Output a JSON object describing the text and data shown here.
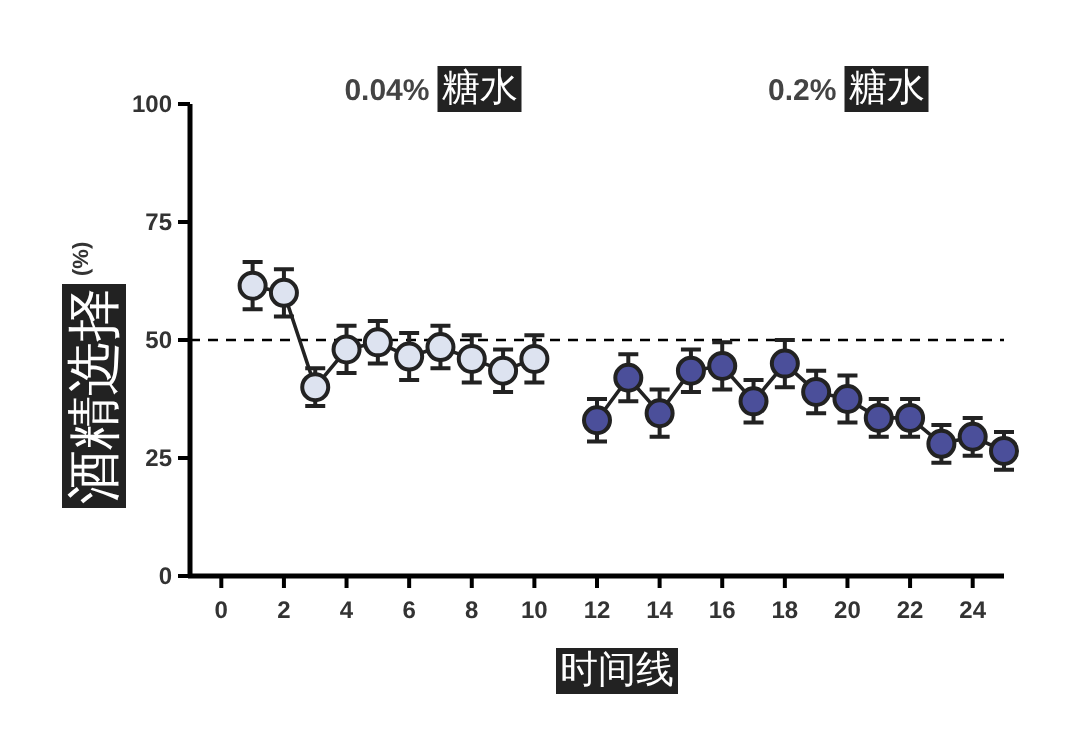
{
  "chart_data": {
    "type": "line",
    "xlabel": "时间线",
    "ylabel": "酒精选择 (%)",
    "annotations": [
      "0.04% 糖水",
      "0.2% 糖水"
    ],
    "xlim": [
      -1,
      25
    ],
    "xticks": [
      0,
      2,
      4,
      6,
      8,
      10,
      12,
      14,
      16,
      18,
      20,
      22,
      24
    ],
    "ylim": [
      0,
      100
    ],
    "yticks": [
      0,
      25,
      50,
      75,
      100
    ],
    "grid": false,
    "marker": "circle",
    "line_style": "solid",
    "ref_lines": [
      {
        "axis": "y",
        "value": 50,
        "line_style": "dashed",
        "color": "#000000"
      }
    ],
    "series": [
      {
        "color": "#dde3f0",
        "x": [
          1,
          2,
          3,
          4,
          5,
          6,
          7,
          8,
          9,
          10
        ],
        "values": [
          61.5,
          60,
          40,
          48,
          49.5,
          46.5,
          48.5,
          46,
          43.5,
          46
        ],
        "errors": [
          5,
          5,
          4,
          5,
          4.5,
          5,
          4.5,
          5,
          4.5,
          5
        ]
      },
      {
        "color": "#4b4f9a",
        "x": [
          12,
          13,
          14,
          15,
          16,
          17,
          18,
          19,
          20,
          21,
          22,
          23,
          24,
          25
        ],
        "values": [
          33,
          42,
          34.5,
          43.5,
          44.5,
          37,
          45,
          39,
          37.5,
          33.5,
          33.5,
          28,
          29.5,
          26.5
        ],
        "errors": [
          4.5,
          5,
          5,
          4.5,
          5,
          4.5,
          5,
          4.5,
          5,
          4,
          4,
          4,
          4,
          4
        ]
      }
    ]
  }
}
